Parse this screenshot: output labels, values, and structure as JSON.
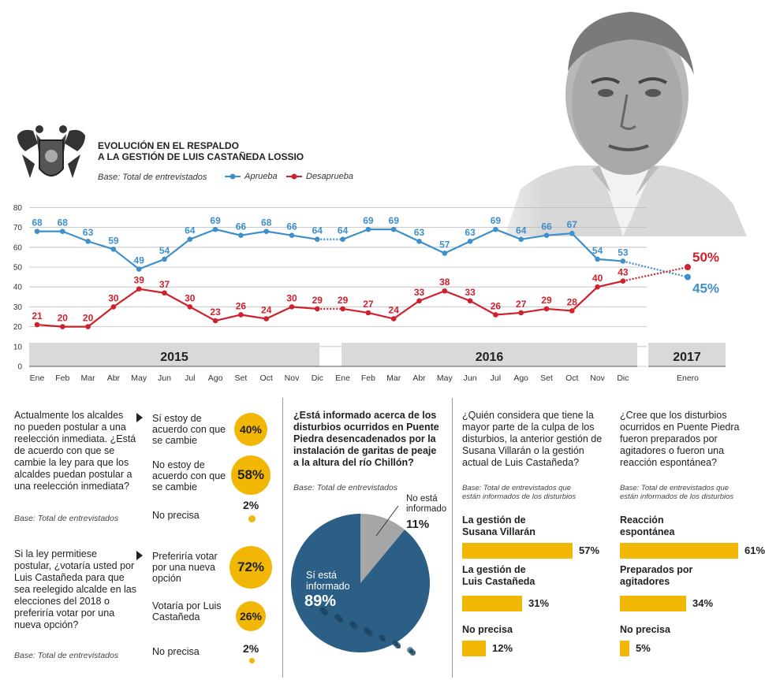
{
  "header": {
    "title_line1": "EVOLUCIÓN EN EL RESPALDO",
    "title_line2": "A LA GESTIÓN DE LUIS CASTAÑEDA LOSSIO",
    "base": "Base: Total de entrevistados",
    "legend_approve": "Aprueba",
    "legend_disapprove": "Desaprueba"
  },
  "colors": {
    "approve": "#3f8fca",
    "disapprove": "#d0202d",
    "accent": "#f2b705",
    "year_band": "#d9d9d9"
  },
  "chart_data": [
    {
      "type": "line",
      "categories": [
        "Ene",
        "Feb",
        "Mar",
        "Abr",
        "May",
        "Jun",
        "Jul",
        "Ago",
        "Set",
        "Oct",
        "Nov",
        "Dic",
        "Ene",
        "Feb",
        "Mar",
        "Abr",
        "May",
        "Jun",
        "Jul",
        "Ago",
        "Set",
        "Oct",
        "Nov",
        "Dic",
        "Enero"
      ],
      "years": [
        {
          "label": "2015",
          "from": 0,
          "to": 11
        },
        {
          "label": "2016",
          "from": 12,
          "to": 23
        },
        {
          "label": "2017",
          "from": 24,
          "to": 24
        }
      ],
      "ylim": [
        0,
        80
      ],
      "yticks": [
        0,
        10,
        20,
        30,
        40,
        50,
        60,
        70,
        80
      ],
      "series": [
        {
          "name": "Aprueba",
          "values": [
            68,
            68,
            63,
            59,
            49,
            54,
            64,
            69,
            66,
            68,
            66,
            64,
            64,
            69,
            69,
            63,
            57,
            63,
            69,
            64,
            66,
            67,
            54,
            53,
            45
          ],
          "final_label": "45%"
        },
        {
          "name": "Desaprueba",
          "values": [
            21,
            20,
            20,
            30,
            39,
            37,
            30,
            23,
            26,
            24,
            30,
            29,
            29,
            27,
            24,
            33,
            38,
            33,
            26,
            27,
            29,
            28,
            40,
            43,
            50
          ],
          "final_label": "50%"
        }
      ],
      "dashed_segments": [
        [
          11,
          12
        ],
        [
          23,
          24
        ]
      ]
    },
    {
      "type": "pie",
      "question": "¿Está informado acerca de los disturbios ocurridos en Puente Piedra desencadenados por la instalación de garitas de peaje a la altura del río Chillón?",
      "slices": [
        {
          "label": "Sí está informado",
          "value": 89,
          "text": "89%"
        },
        {
          "label": "No está informado",
          "value": 11,
          "text": "11%"
        }
      ]
    },
    {
      "type": "bar",
      "question": "¿Quién considera que tiene la mayor parte de la culpa de los disturbios, la anterior gestión de Susana Villarán o la gestión actual de Luis Castañeda?",
      "categories": [
        "La gestión de Susana Villarán",
        "La gestión de Luis Castañeda",
        "No precisa"
      ],
      "values": [
        57,
        31,
        12
      ]
    },
    {
      "type": "bar",
      "question": "¿Cree que los disturbios ocurridos en Puente Piedra fueron preparados por agitadores o fueron una reacción espontánea?",
      "categories": [
        "Reacción espontánea",
        "Preparados por agitadores",
        "No precisa"
      ],
      "values": [
        61,
        34,
        5
      ]
    }
  ],
  "reelection": {
    "q1": "Actualmente los alcaldes no pueden postular a una reelección inmediata. ¿Está de acuerdo con que se cambie la ley para que los alcaldes puedan postular a una reelección inmediata?",
    "q1_base": "Base: Total de entrevistados",
    "q1_options": [
      {
        "label": "Sí estoy de acuerdo con que se cambie",
        "value": 40,
        "text": "40%"
      },
      {
        "label": "No estoy de acuerdo con que se cambie",
        "value": 58,
        "text": "58%"
      },
      {
        "label": "No precisa",
        "value": 2,
        "text": "2%"
      }
    ],
    "q2": "Si la ley permitiese postular, ¿votaría usted por Luis Castañeda para que sea reelegido alcalde en las elecciones del 2018 o preferiría votar por una nueva opción?",
    "q2_base": "Base: Total de entrevistados",
    "q2_options": [
      {
        "label": "Preferiría votar por una nueva opción",
        "value": 72,
        "text": "72%"
      },
      {
        "label": "Votaría por Luis Castañeda",
        "value": 26,
        "text": "26%"
      },
      {
        "label": "No precisa",
        "value": 2,
        "text": "2%"
      }
    ]
  },
  "pie_base": "Base: Total de entrevistados",
  "pie_labels": {
    "yes_line1": "Sí está",
    "yes_line2": "informado",
    "no_line1": "No está",
    "no_line2": "informado"
  },
  "blame": {
    "base_line1": "Base: Total de entrevistados que",
    "base_line2": "están informados de los disturbios",
    "labels": [
      [
        "La gestión de",
        "Susana Villarán"
      ],
      [
        "La gestión de",
        "Luis Castañeda"
      ],
      [
        "No precisa"
      ]
    ],
    "texts": [
      "57%",
      "31%",
      "12%"
    ]
  },
  "spont": {
    "base_line1": "Base: Total de entrevistados que",
    "base_line2": "están informados de los disturbios",
    "labels": [
      [
        "Reacción",
        "espontánea"
      ],
      [
        "Preparados por",
        "agitadores"
      ],
      [
        "No precisa"
      ]
    ],
    "texts": [
      "61%",
      "34%",
      "5%"
    ]
  }
}
